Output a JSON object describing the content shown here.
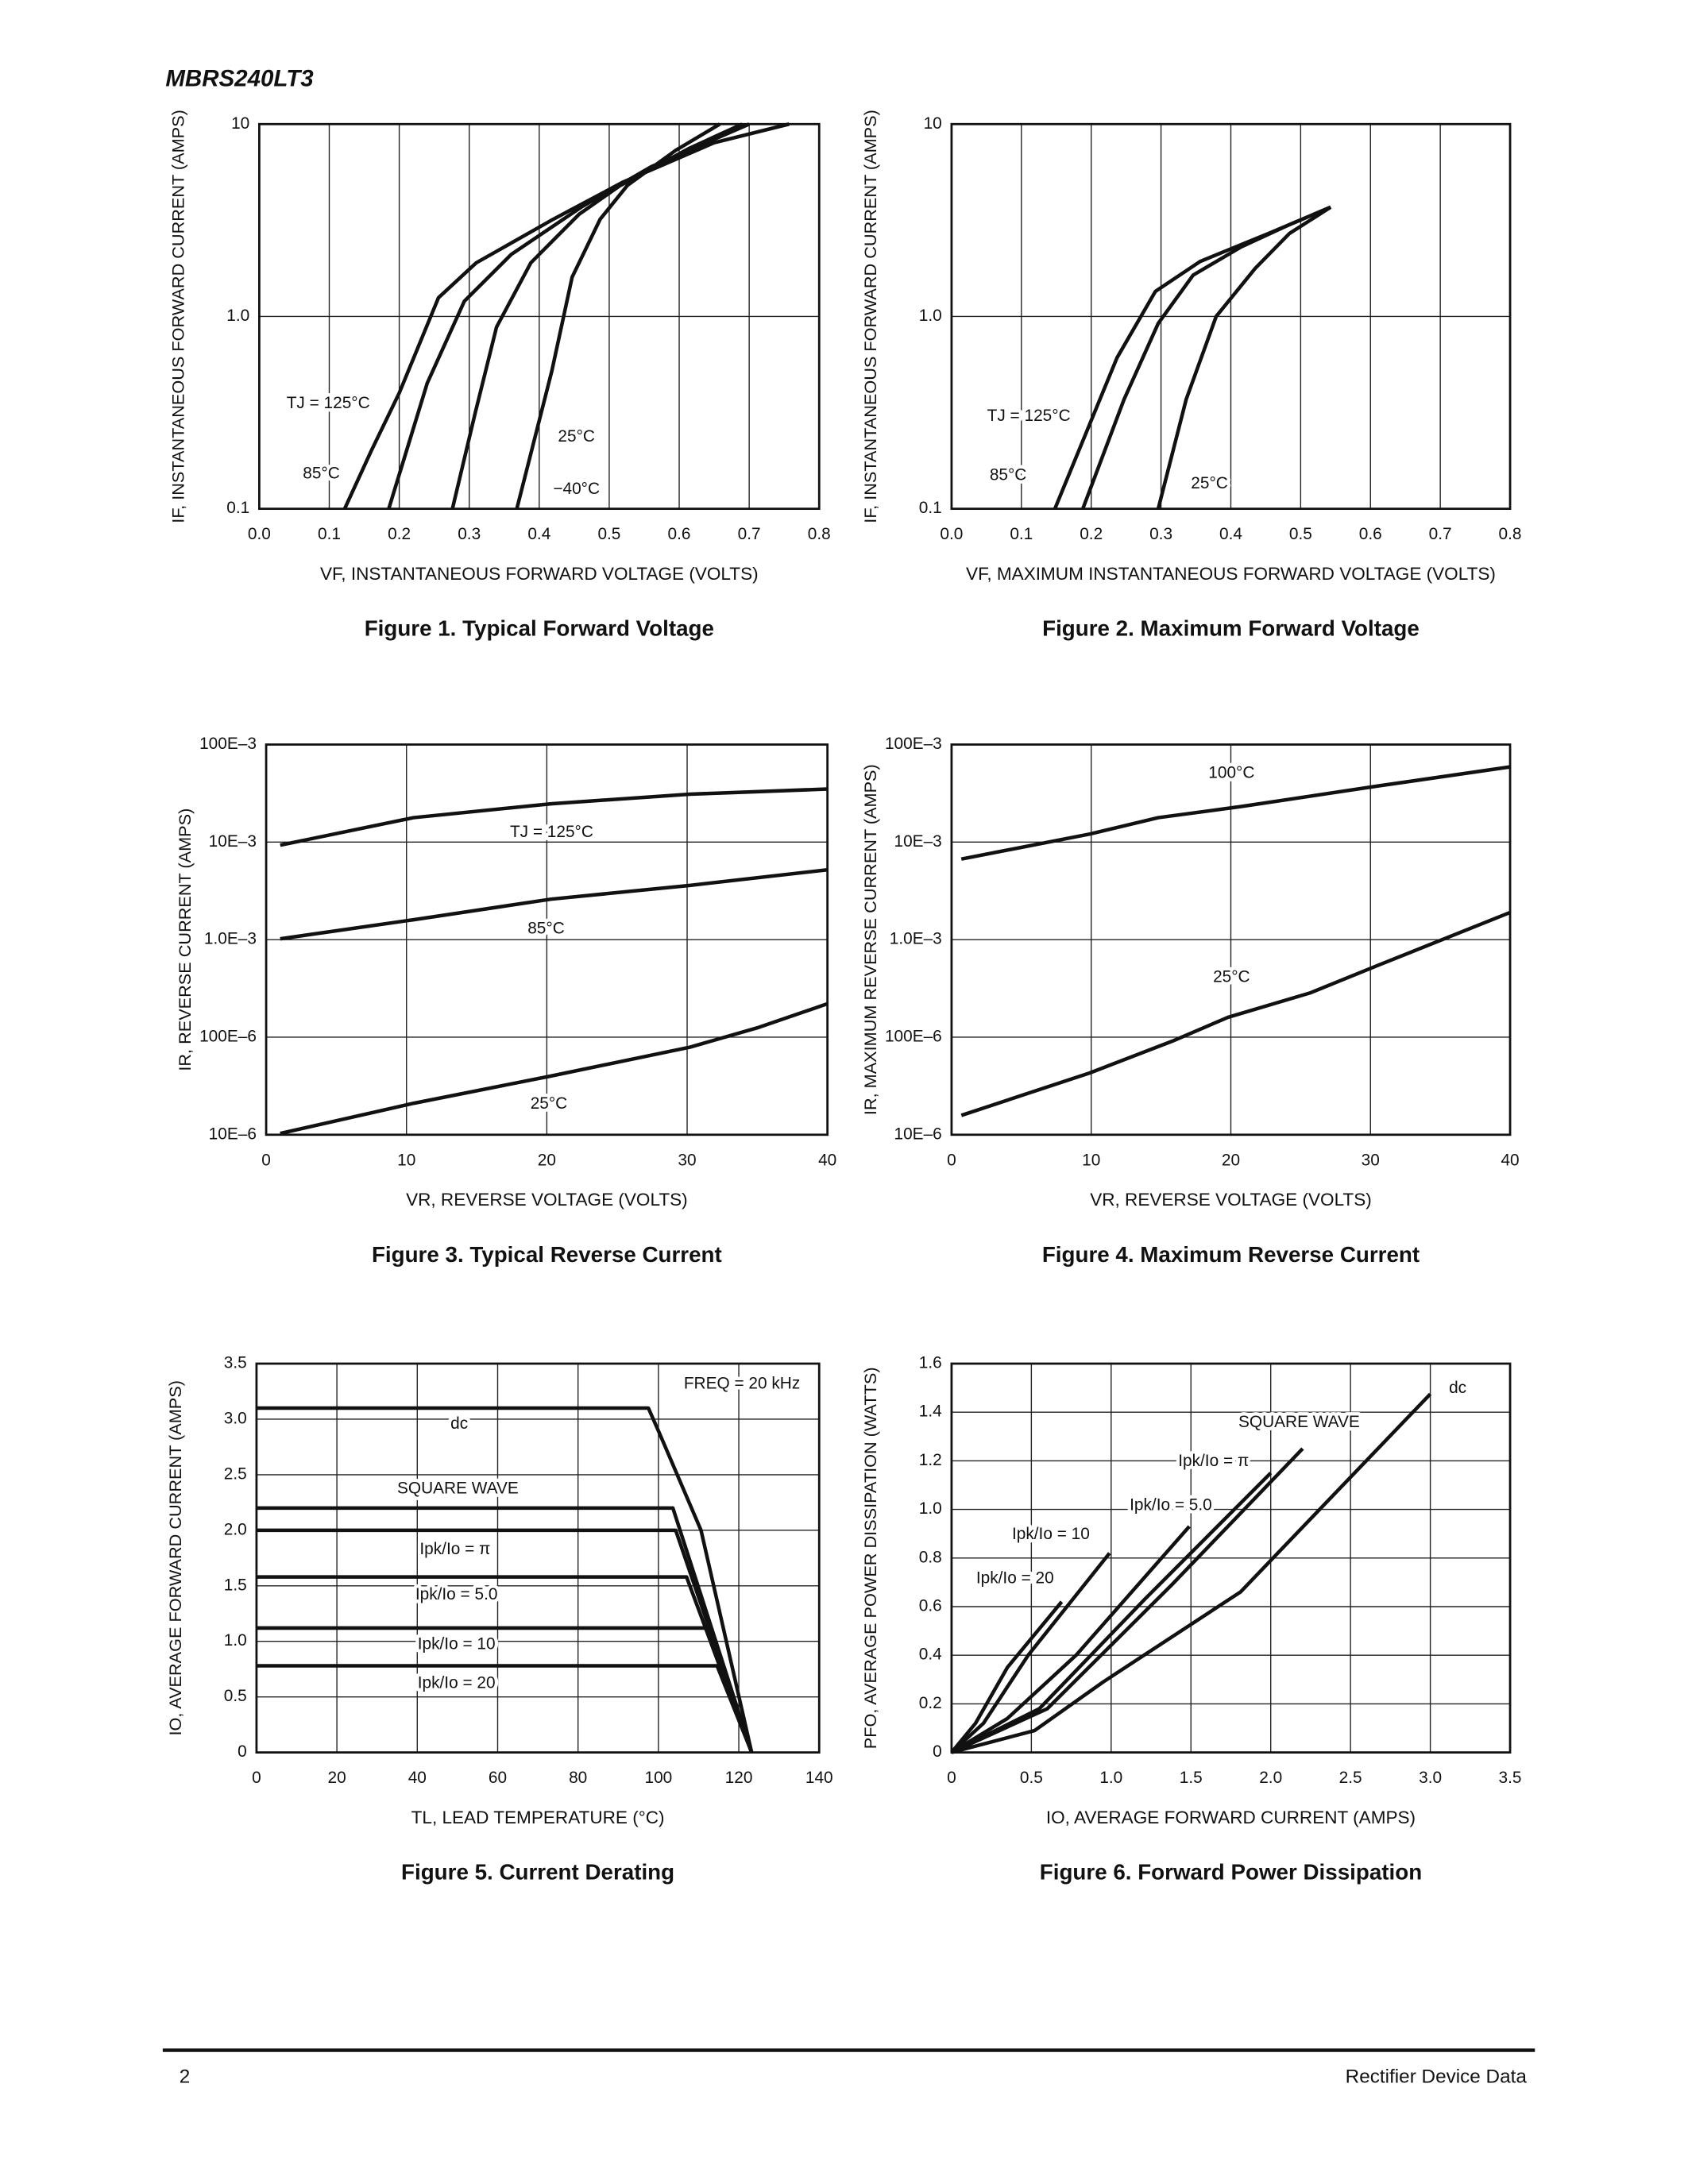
{
  "header": {
    "title": "MBRS240LT3"
  },
  "chart_data": [
    {
      "type": "line",
      "title": "Figure 1. Typical Forward Voltage",
      "xlabel": "VF, INSTANTANEOUS FORWARD VOLTAGE (VOLTS)",
      "ylabel": "IF, INSTANTANEOUS FORWARD CURRENT (AMPS)",
      "xlim": [
        0,
        0.8
      ],
      "xticks": [
        {
          "value": 0,
          "label": "0.0"
        },
        0.1,
        0.2,
        0.3,
        0.4,
        0.5,
        0.6,
        0.7,
        0.8
      ],
      "ylim": [
        0.1,
        10
      ],
      "yticks": [
        0.1,
        {
          "value": 1,
          "label": "1.0"
        },
        10
      ],
      "yscale": "log",
      "grid": true,
      "color": "#111111",
      "series": [
        {
          "name": "TJ = 125°C",
          "x": [
            0.122,
            0.16,
            0.2,
            0.256,
            0.31,
            0.42,
            0.52,
            0.65,
            0.757
          ],
          "values": [
            0.1,
            0.2,
            0.4,
            1.25,
            1.9,
            3.2,
            5,
            8,
            10
          ]
        },
        {
          "name": "85°C",
          "x": [
            0.185,
            0.24,
            0.293,
            0.36,
            0.46,
            0.56,
            0.7
          ],
          "values": [
            0.1,
            0.45,
            1.2,
            2.1,
            3.7,
            6,
            10
          ]
        },
        {
          "name": "25°C",
          "x": [
            0.276,
            0.309,
            0.339,
            0.388,
            0.457,
            0.516,
            0.615,
            0.69
          ],
          "values": [
            0.1,
            0.32,
            0.88,
            1.9,
            3.4,
            4.8,
            7.5,
            10
          ]
        },
        {
          "name": "−40°C",
          "x": [
            0.368,
            0.418,
            0.447,
            0.487,
            0.526,
            0.595,
            0.658
          ],
          "values": [
            0.1,
            0.52,
            1.6,
            3.2,
            4.8,
            7.3,
            10
          ]
        }
      ]
    },
    {
      "type": "line",
      "title": "Figure 2. Maximum Forward Voltage",
      "xlabel": "VF, MAXIMUM INSTANTANEOUS FORWARD VOLTAGE (VOLTS)",
      "ylabel": "IF, INSTANTANEOUS FORWARD CURRENT (AMPS)",
      "xlim": [
        0,
        0.8
      ],
      "xticks": [
        {
          "value": 0,
          "label": "0.0"
        },
        0.1,
        0.2,
        0.3,
        0.4,
        0.5,
        0.6,
        0.7,
        0.8
      ],
      "ylim": [
        0.1,
        10
      ],
      "yticks": [
        0.1,
        {
          "value": 1,
          "label": "1.0"
        },
        10
      ],
      "yscale": "log",
      "grid": true,
      "color": "#111111",
      "series": [
        {
          "name": "TJ = 125°C",
          "x": [
            0.148,
            0.237,
            0.292,
            0.356,
            0.454,
            0.543
          ],
          "values": [
            0.1,
            0.61,
            1.35,
            1.93,
            2.7,
            3.7
          ]
        },
        {
          "name": "85°C",
          "x": [
            0.188,
            0.247,
            0.296,
            0.346,
            0.415,
            0.484,
            0.543
          ],
          "values": [
            0.1,
            0.37,
            0.92,
            1.64,
            2.3,
            3,
            3.7
          ]
        },
        {
          "name": "25°C",
          "x": [
            0.296,
            0.336,
            0.379,
            0.435,
            0.484,
            0.543
          ],
          "values": [
            0.1,
            0.37,
            1,
            1.78,
            2.7,
            3.7
          ]
        }
      ]
    },
    {
      "type": "line",
      "title": "Figure 3. Typical Reverse Current",
      "xlabel": "VR, REVERSE VOLTAGE (VOLTS)",
      "ylabel": "IR, REVERSE CURRENT (AMPS)",
      "xlim": [
        0,
        40
      ],
      "xticks": [
        0,
        10,
        20,
        30,
        40
      ],
      "ylim": [
        1e-05,
        0.1
      ],
      "yticks": [
        {
          "value": 1e-05,
          "label": "10E–6"
        },
        {
          "value": 0.0001,
          "label": "100E–6"
        },
        {
          "value": 0.001,
          "label": "1.0E–3"
        },
        {
          "value": 0.01,
          "label": "10E–3"
        },
        {
          "value": 0.1,
          "label": "100E–3"
        }
      ],
      "yscale": "log",
      "grid": true,
      "color": "#111111",
      "series": [
        {
          "name": "TJ = 125°C",
          "x": [
            1,
            10.5,
            20.3,
            30.2,
            40
          ],
          "values": [
            0.0093,
            0.0178,
            0.0247,
            0.031,
            0.035
          ]
        },
        {
          "name": "85°C",
          "x": [
            1,
            10.5,
            20.3,
            30.2,
            40
          ],
          "values": [
            0.00102,
            0.0016,
            0.0026,
            0.0036,
            0.0052
          ]
        },
        {
          "name": "25°C",
          "x": [
            1,
            10.5,
            20.3,
            30.2,
            35.1,
            40
          ],
          "values": [
            1.03e-05,
            2.1e-05,
            4e-05,
            7.9e-05,
            0.000126,
            0.00022
          ]
        }
      ]
    },
    {
      "type": "line",
      "title": "Figure 4. Maximum Reverse Current",
      "xlabel": "VR, REVERSE VOLTAGE (VOLTS)",
      "ylabel": "IR, MAXIMUM REVERSE CURRENT (AMPS)",
      "xlim": [
        0,
        40
      ],
      "xticks": [
        0,
        10,
        20,
        30,
        40
      ],
      "ylim": [
        1e-05,
        0.1
      ],
      "yticks": [
        {
          "value": 1e-05,
          "label": "10E–6"
        },
        {
          "value": 0.0001,
          "label": "100E–6"
        },
        {
          "value": 0.001,
          "label": "1.0E–3"
        },
        {
          "value": 0.01,
          "label": "10E–3"
        },
        {
          "value": 0.1,
          "label": "100E–3"
        }
      ],
      "yscale": "log",
      "grid": true,
      "color": "#111111",
      "series": [
        {
          "name": "100°C",
          "x": [
            0.7,
            9.9,
            14.8,
            20.7,
            30.6,
            40
          ],
          "values": [
            0.0067,
            0.0121,
            0.0178,
            0.0231,
            0.0377,
            0.059
          ]
        },
        {
          "name": "25°C",
          "x": [
            0.7,
            9.9,
            15.8,
            19.8,
            25.7,
            30.6,
            40
          ],
          "values": [
            1.58e-05,
            4.3e-05,
            9.1e-05,
            0.00016,
            0.000285,
            0.00055,
            0.0019
          ]
        }
      ]
    },
    {
      "type": "line",
      "title": "Figure 5. Current Derating",
      "annotation": "FREQ = 20 kHz",
      "xlabel": "TL, LEAD TEMPERATURE (°C)",
      "ylabel": "IO, AVERAGE FORWARD CURRENT (AMPS)",
      "xlim": [
        0,
        140
      ],
      "xticks": [
        0,
        20,
        40,
        60,
        80,
        100,
        120,
        140
      ],
      "ylim": [
        0,
        3.5
      ],
      "yticks": [
        0,
        0.5,
        {
          "value": 1,
          "label": "1.0"
        },
        1.5,
        {
          "value": 2,
          "label": "2.0"
        },
        2.5,
        {
          "value": 3,
          "label": "3.0"
        },
        3.5
      ],
      "grid": true,
      "color": "#111111",
      "series": [
        {
          "name": "dc",
          "x": [
            0,
            97.5,
            100.3,
            110.6,
            123.2
          ],
          "values": [
            3.1,
            3.1,
            2.87,
            2,
            0
          ]
        },
        {
          "name": "SQUARE WAVE",
          "x": [
            0,
            103.6,
            123.2
          ],
          "values": [
            2.2,
            2.2,
            0
          ]
        },
        {
          "name": "Ipk/Io = π",
          "x": [
            0,
            104.3,
            123.2
          ],
          "values": [
            2,
            2,
            0
          ]
        },
        {
          "name": "Ipk/Io = 5.0",
          "x": [
            0,
            107,
            123.2
          ],
          "values": [
            1.58,
            1.58,
            0
          ]
        },
        {
          "name": "Ipk/Io = 10",
          "x": [
            0,
            111.8,
            123.2
          ],
          "values": [
            1.12,
            1.12,
            0
          ]
        },
        {
          "name": "Ipk/Io = 20",
          "x": [
            0,
            114.6,
            123.2
          ],
          "values": [
            0.78,
            0.78,
            0
          ]
        }
      ]
    },
    {
      "type": "line",
      "title": "Figure 6. Forward Power Dissipation",
      "xlabel": "IO, AVERAGE FORWARD CURRENT (AMPS)",
      "ylabel": "PFO, AVERAGE POWER DISSIPATION (WATTS)",
      "xlim": [
        0,
        3.5
      ],
      "xticks": [
        0,
        0.5,
        {
          "value": 1,
          "label": "1.0"
        },
        1.5,
        {
          "value": 2,
          "label": "2.0"
        },
        2.5,
        {
          "value": 3,
          "label": "3.0"
        },
        3.5
      ],
      "ylim": [
        0,
        1.6
      ],
      "yticks": [
        0,
        0.2,
        0.4,
        0.6,
        0.8,
        {
          "value": 1,
          "label": "1.0"
        },
        1.2,
        1.4,
        1.6
      ],
      "grid": true,
      "color": "#111111",
      "series": [
        {
          "name": "dc",
          "x": [
            0,
            0.52,
            0.95,
            1.81,
            3
          ],
          "values": [
            0,
            0.09,
            0.29,
            0.66,
            1.475
          ]
        },
        {
          "name": "SQUARE WAVE",
          "x": [
            0,
            0.6,
            1.38,
            2.2
          ],
          "values": [
            0,
            0.18,
            0.69,
            1.25
          ]
        },
        {
          "name": "Ipk/Io = π",
          "x": [
            0,
            0.55,
            1.21,
            2
          ],
          "values": [
            0,
            0.18,
            0.63,
            1.15
          ]
        },
        {
          "name": "Ipk/Io = 5.0",
          "x": [
            0,
            0.35,
            0.78,
            1.49
          ],
          "values": [
            0,
            0.14,
            0.4,
            0.93
          ]
        },
        {
          "name": "Ipk/Io = 10",
          "x": [
            0,
            0.2,
            0.48,
            0.99
          ],
          "values": [
            0,
            0.12,
            0.4,
            0.82
          ]
        },
        {
          "name": "Ipk/Io = 20",
          "x": [
            0,
            0.15,
            0.35,
            0.69
          ],
          "values": [
            0,
            0.12,
            0.35,
            0.62
          ]
        }
      ]
    }
  ],
  "footer": {
    "page": "2",
    "text": "Rectifier Device Data"
  }
}
